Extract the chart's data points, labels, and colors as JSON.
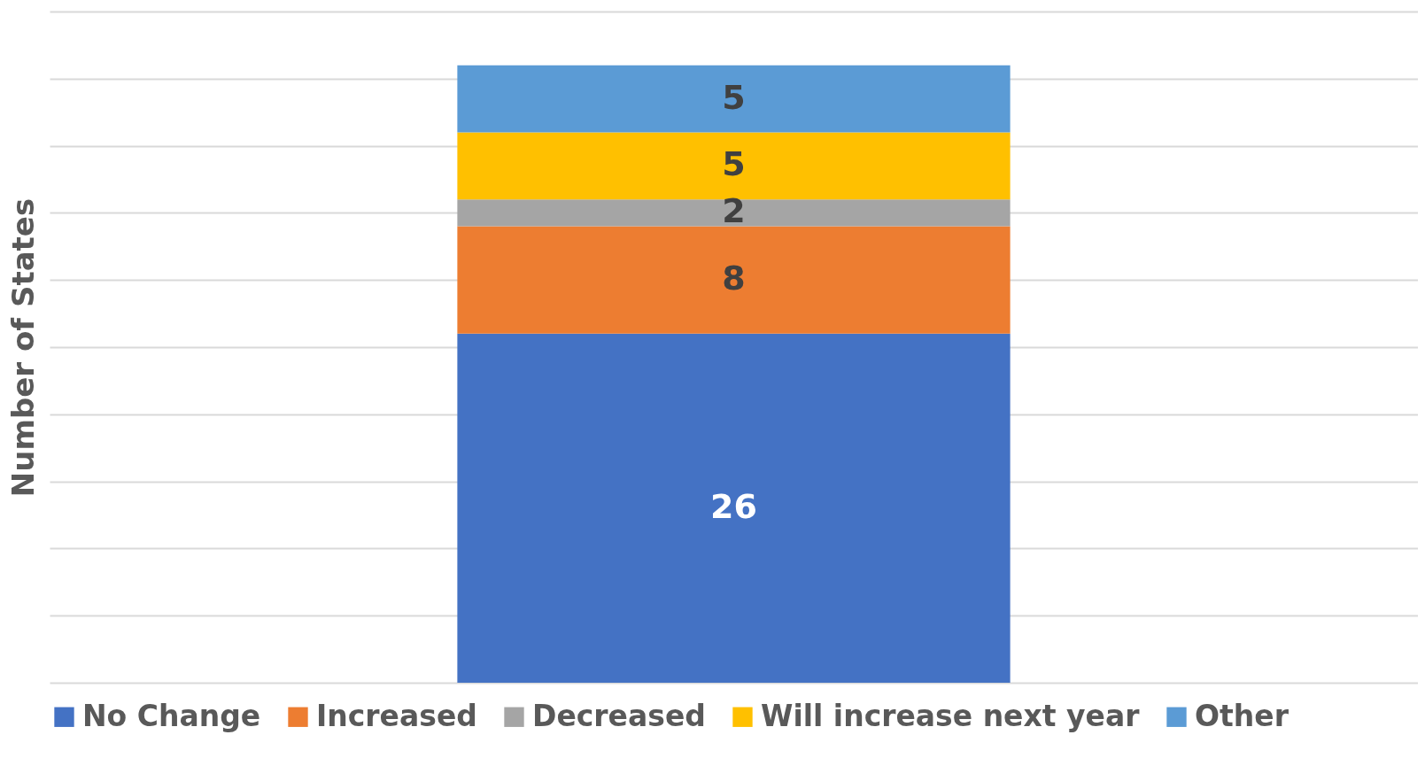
{
  "chart_data": {
    "type": "bar",
    "stacked": true,
    "ylabel": "Number of States",
    "categories": [
      null
    ],
    "series": [
      {
        "name": "No Change",
        "color": "#4472c4",
        "values": [
          26
        ]
      },
      {
        "name": "Increased",
        "color": "#ed7d31",
        "values": [
          8
        ]
      },
      {
        "name": "Decreased",
        "color": "#a5a5a5",
        "values": [
          2
        ]
      },
      {
        "name": "Will increase next year",
        "color": "#ffc000",
        "values": [
          5
        ]
      },
      {
        "name": "Other",
        "color": "#5b9bd5",
        "values": [
          5
        ]
      }
    ],
    "ylim": [
      0,
      50
    ],
    "yticks": [
      {
        "value": 0,
        "label": null
      },
      {
        "value": 5,
        "label": null
      },
      {
        "value": 10,
        "label": null
      },
      {
        "value": 15,
        "label": null
      },
      {
        "value": 20,
        "label": null
      },
      {
        "value": 25,
        "label": null
      },
      {
        "value": 30,
        "label": null
      },
      {
        "value": 35,
        "label": null
      },
      {
        "value": 40,
        "label": null
      },
      {
        "value": 45,
        "label": null
      },
      {
        "value": 50,
        "label": null
      }
    ],
    "grid": "y",
    "legend": "bottom",
    "data_labels": true
  }
}
